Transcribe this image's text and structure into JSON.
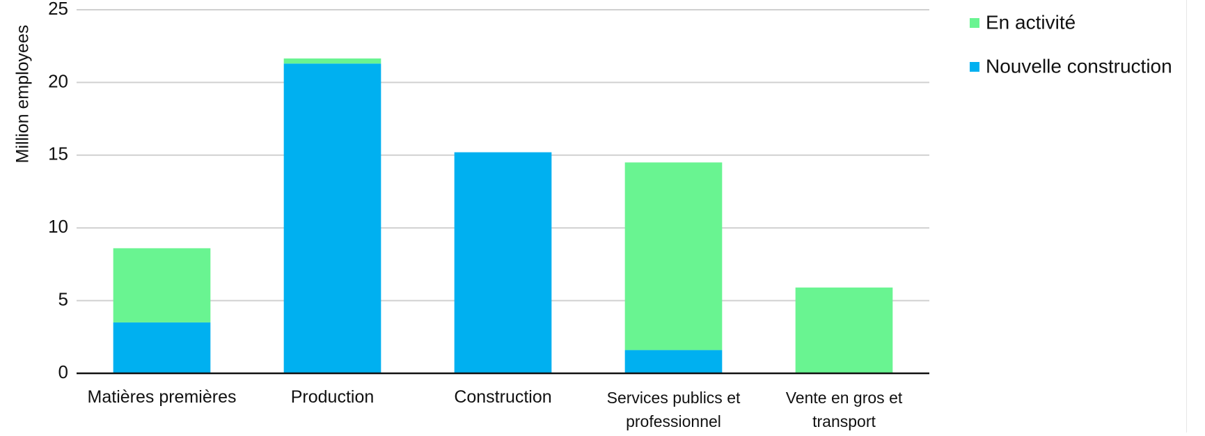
{
  "chart_data": {
    "type": "bar",
    "stacked": true,
    "title": "",
    "xlabel": "",
    "ylabel": "Million employees",
    "ylim": [
      0,
      25
    ],
    "yticks": [
      0,
      5,
      10,
      15,
      20,
      25
    ],
    "grid": true,
    "legend_position": "top-right",
    "categories": [
      "Matières premières",
      "Production",
      "Construction",
      "Services publics et professionnel",
      "Vente en gros et transport"
    ],
    "series": [
      {
        "name": "Nouvelle construction",
        "color": "#00b0f0",
        "values": [
          3.5,
          21.3,
          15.2,
          1.6,
          0
        ]
      },
      {
        "name": "En activité",
        "color": "#69f491",
        "values": [
          5.1,
          0.35,
          0,
          12.9,
          5.9
        ]
      }
    ],
    "legend_order": [
      "En activité",
      "Nouvelle construction"
    ]
  }
}
